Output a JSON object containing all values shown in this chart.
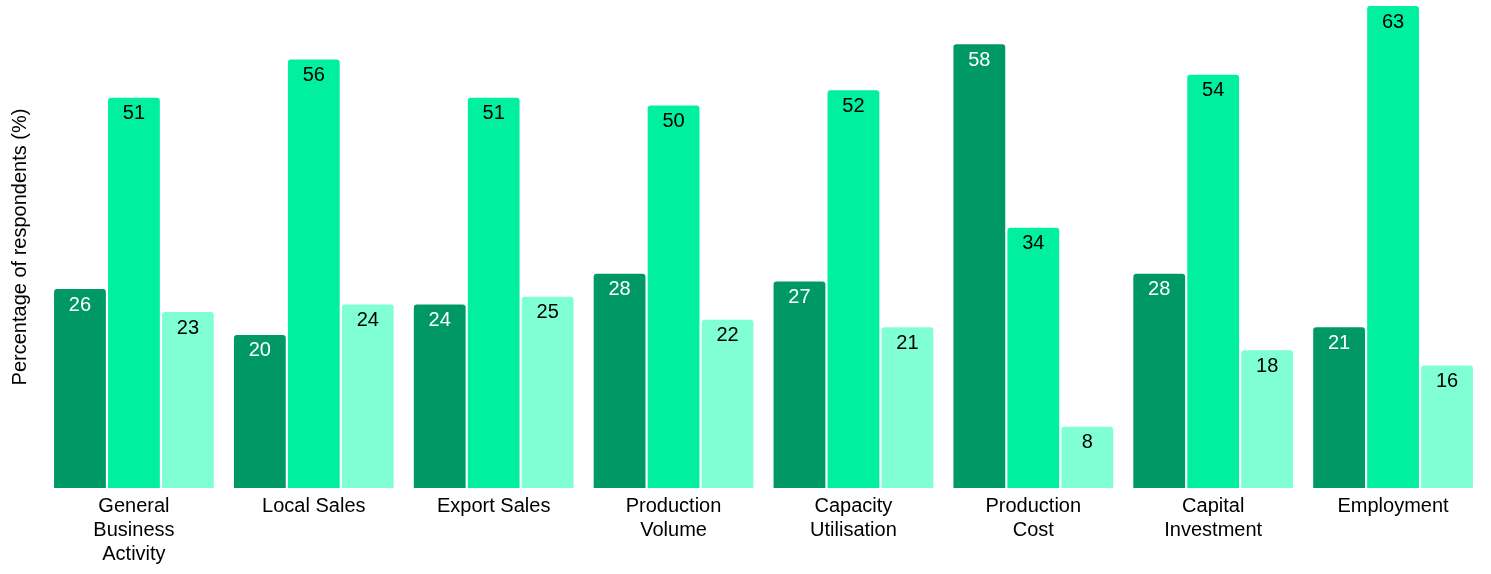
{
  "chart_data": {
    "type": "bar",
    "ylabel": "Percentage of respondents (%)",
    "categories": [
      "General Business Activity",
      "Local Sales",
      "Export Sales",
      "Production Volume",
      "Capacity Utilisation",
      "Production Cost",
      "Capital Investment",
      "Employment"
    ],
    "series": [
      {
        "color": "#009966",
        "values": [
          26,
          20,
          24,
          28,
          27,
          58,
          28,
          21
        ]
      },
      {
        "color": "#00f0a0",
        "values": [
          51,
          56,
          51,
          50,
          52,
          34,
          54,
          63
        ]
      },
      {
        "color": "#80ffd4",
        "values": [
          23,
          24,
          25,
          22,
          21,
          8,
          18,
          16
        ]
      }
    ],
    "data_labels": true,
    "grid": false,
    "legend": false
  }
}
